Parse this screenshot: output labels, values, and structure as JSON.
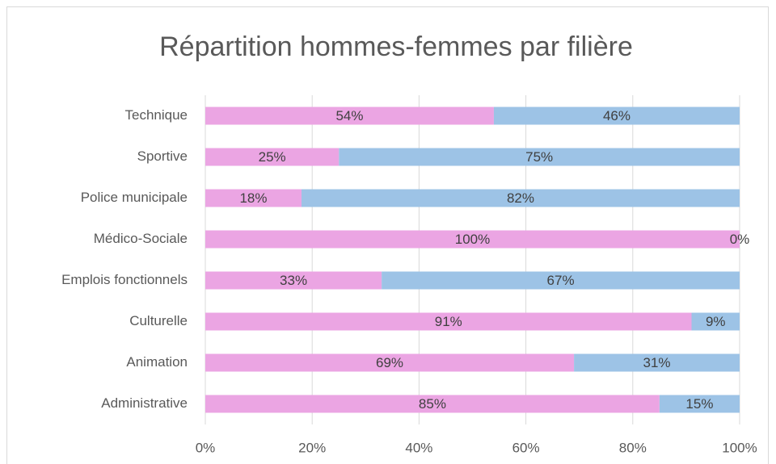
{
  "chart_data": {
    "type": "stacked-barh",
    "title": "Répartition hommes-femmes par filière",
    "categories": [
      "Technique",
      "Sportive",
      "Police municipale",
      "Médico-Sociale",
      "Emplois fonctionnels",
      "Culturelle",
      "Animation",
      "Administrative"
    ],
    "series": [
      {
        "color": "#eba5e3",
        "values": [
          54,
          25,
          18,
          100,
          33,
          91,
          69,
          85
        ],
        "value_labels": [
          "54%",
          "25%",
          "18%",
          "100%",
          "33%",
          "91%",
          "69%",
          "85%"
        ]
      },
      {
        "color": "#9dc3e6",
        "values": [
          46,
          75,
          82,
          0,
          67,
          9,
          31,
          15
        ],
        "value_labels": [
          "46%",
          "75%",
          "82%",
          "0%",
          "67%",
          "9%",
          "31%",
          "15%"
        ]
      }
    ],
    "xlim": [
      0,
      100
    ],
    "xticks": [
      {
        "value": 0,
        "label": "0%"
      },
      {
        "value": 20,
        "label": "20%"
      },
      {
        "value": 40,
        "label": "40%"
      },
      {
        "value": 60,
        "label": "60%"
      },
      {
        "value": 80,
        "label": "80%"
      },
      {
        "value": 100,
        "label": "100%"
      }
    ],
    "grid": true
  }
}
